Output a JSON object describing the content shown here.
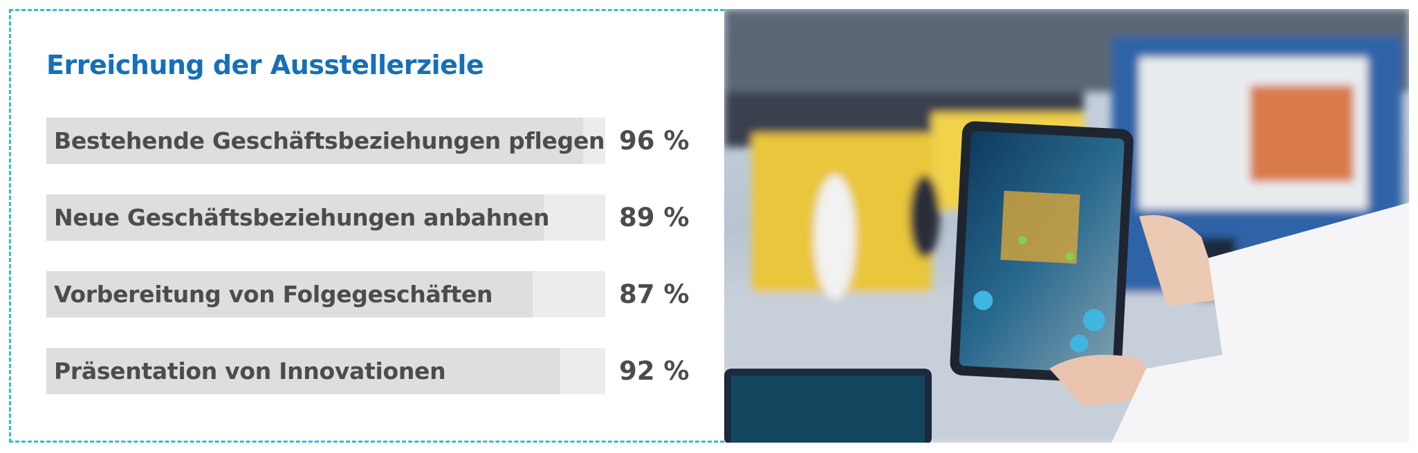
{
  "chart_data": {
    "type": "bar",
    "orientation": "horizontal",
    "title": "Erreichung der Ausstellerziele",
    "categories": [
      "Bestehende Geschäftsbeziehungen pflegen",
      "Neue Geschäftsbeziehungen anbahnen",
      "Vorbereitung von Folgegeschäften",
      "Präsentation von Innovationen"
    ],
    "values": [
      96,
      89,
      87,
      92
    ],
    "value_labels": [
      "96 %",
      "89 %",
      "87 %",
      "92 %"
    ],
    "xlim": [
      0,
      100
    ],
    "grid": false,
    "legend": "none"
  },
  "colors": {
    "title": "#1470b8",
    "border": "#2fbfd0",
    "bar_fill": "#dedede",
    "bar_track": "#ececee",
    "text": "#4c4c4e"
  },
  "photo": {
    "subject": "trade-fair-ar-tablet-photo"
  }
}
